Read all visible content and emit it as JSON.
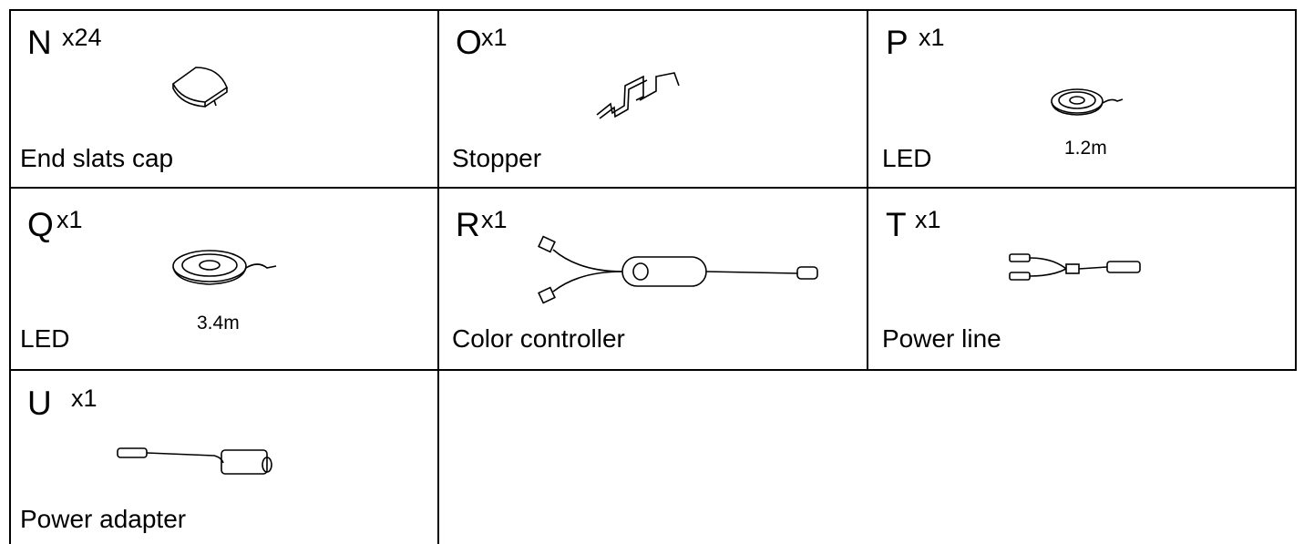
{
  "parts": [
    {
      "letter": "N",
      "quantity": "x24",
      "name": "End slats cap"
    },
    {
      "letter": "O",
      "quantity": "x1",
      "name": "Stopper"
    },
    {
      "letter": "P",
      "quantity": "x1",
      "name": "LED",
      "length": "1.2m"
    },
    {
      "letter": "Q",
      "quantity": "x1",
      "name": "LED",
      "length": "3.4m"
    },
    {
      "letter": "R",
      "quantity": "x1",
      "name": "Color controller"
    },
    {
      "letter": "T",
      "quantity": "x1",
      "name": "Power line"
    },
    {
      "letter": "U",
      "quantity": "x1",
      "name": "Power adapter"
    }
  ]
}
